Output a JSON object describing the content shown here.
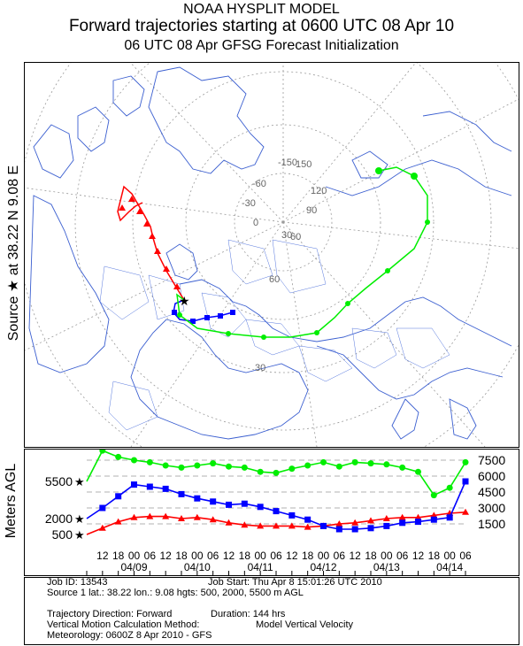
{
  "header": {
    "line1": "NOAA HYSPLIT MODEL",
    "line2": "Forward trajectories starting at 0600 UTC 08 Apr 10",
    "line3": "06 UTC 08 Apr    GFSG  Forecast Initialization"
  },
  "side_label": "Source ★ at   38.22 N    9.08 E",
  "map": {
    "grid_labels": [
      {
        "text": "-150"
      },
      {
        "text": "150"
      },
      {
        "text": "-60"
      },
      {
        "text": "120"
      },
      {
        "text": "-30"
      },
      {
        "text": "90"
      },
      {
        "text": "0"
      },
      {
        "text": "30"
      },
      {
        "text": "60"
      },
      {
        "text": "60"
      },
      {
        "text": "30"
      }
    ],
    "colors": {
      "red": "#ff0000",
      "blue": "#0000ff",
      "green": "#00ee00",
      "coast": "#3366cc",
      "grid": "#888888"
    }
  },
  "chart_data": {
    "type": "line",
    "ylabel": "Meters AGL",
    "y_ticks_right": [
      "7500",
      "6000",
      "4500",
      "3000",
      "1500"
    ],
    "y_ticks_left": [
      "5500",
      "2000",
      "500"
    ],
    "x_tick_hours": [
      "12",
      "18",
      "00",
      "06",
      "12",
      "18",
      "00",
      "06",
      "12",
      "18",
      "00",
      "06",
      "12",
      "18",
      "00",
      "06",
      "12",
      "18",
      "00",
      "06",
      "12",
      "18",
      "00",
      "06"
    ],
    "x_dates": [
      "04/09",
      "04/10",
      "04/11",
      "04/12",
      "04/13",
      "04/14"
    ],
    "ylim": [
      0,
      8500
    ],
    "series": [
      {
        "color": "red",
        "start_height": 500,
        "x": [
          0,
          6,
          12,
          18,
          24,
          30,
          36,
          42,
          48,
          54,
          60,
          66,
          72,
          78,
          84,
          90,
          96,
          102,
          108,
          114,
          120,
          126,
          132,
          138,
          144
        ],
        "values": [
          500,
          1100,
          1700,
          2100,
          2200,
          2200,
          2000,
          2100,
          1900,
          1600,
          1400,
          1300,
          1300,
          1300,
          1200,
          1300,
          1500,
          1600,
          1800,
          2000,
          2100,
          2100,
          2300,
          2500,
          2600
        ]
      },
      {
        "color": "blue",
        "start_height": 2000,
        "x": [
          0,
          6,
          12,
          18,
          24,
          30,
          36,
          42,
          48,
          54,
          60,
          66,
          72,
          78,
          84,
          90,
          96,
          102,
          108,
          114,
          120,
          126,
          132,
          138,
          144
        ],
        "values": [
          2000,
          3000,
          4100,
          5200,
          5000,
          4800,
          4300,
          3900,
          3600,
          3300,
          3400,
          3100,
          2700,
          2300,
          1900,
          1300,
          1000,
          1000,
          1100,
          1300,
          1600,
          1700,
          1900,
          2100,
          5500
        ]
      },
      {
        "color": "green",
        "start_height": 5500,
        "x": [
          0,
          6,
          12,
          18,
          24,
          30,
          36,
          42,
          48,
          54,
          60,
          66,
          72,
          78,
          84,
          90,
          96,
          102,
          108,
          114,
          120,
          126,
          132,
          138,
          144
        ],
        "values": [
          5500,
          8400,
          7800,
          7500,
          7300,
          7000,
          6800,
          7000,
          7200,
          6900,
          6800,
          6400,
          6300,
          6700,
          7000,
          7300,
          6900,
          7300,
          7200,
          7100,
          6800,
          6400,
          4200,
          4900,
          7300
        ]
      }
    ]
  },
  "footer": {
    "job_id": "Job ID: 13543",
    "job_start": "Job Start: Thu Apr  8 15:01:26 UTC 2010",
    "source": "Source 1 lat.: 38.22  lon.: 9.08  hgts: 500, 2000, 5500 m AGL",
    "direction": "Trajectory Direction: Forward",
    "duration": "Duration: 144 hrs",
    "vertical_method_label": "Vertical Motion Calculation Method:",
    "vertical_method_value": "Model Vertical Velocity",
    "meteorology": "Meteorology: 0600Z  8 Apr 2010 - GFS"
  }
}
